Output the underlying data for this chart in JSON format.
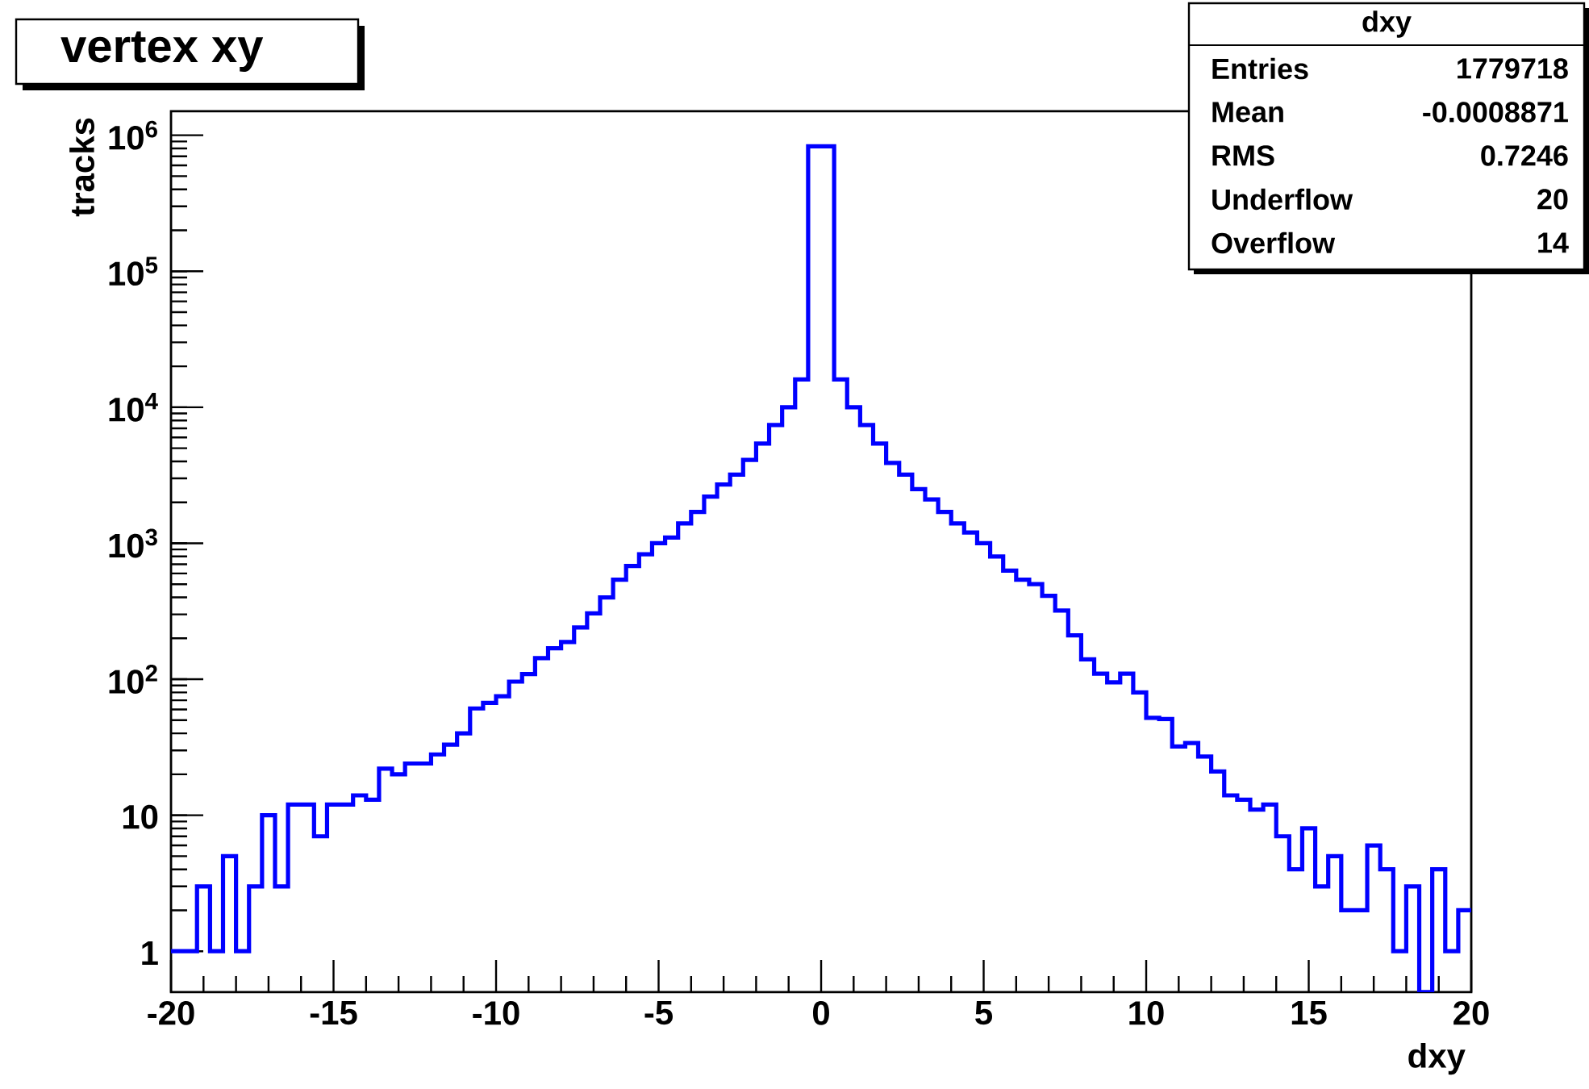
{
  "chart_data": {
    "type": "histogram",
    "title": "vertex xy",
    "xlabel": "dxy",
    "ylabel": "tracks",
    "log": "y",
    "color": "#0000ff",
    "xlim": [
      -20,
      20
    ],
    "ylim": [
      0.5,
      1500000
    ],
    "xticks": [
      -20,
      -15,
      -10,
      -5,
      0,
      5,
      10,
      15,
      20
    ],
    "yticks": [
      1,
      10,
      {
        "value": 100,
        "label": "10$^{2}$"
      },
      {
        "value": 1000,
        "label": "10$^{3}$"
      },
      {
        "value": 10000,
        "label": "10$^{4}$"
      },
      {
        "value": 100000,
        "label": "10$^{5}$"
      },
      {
        "value": 1000000,
        "label": "10$^{6}$"
      }
    ],
    "bins": [
      -20,
      -19.6,
      -19.2,
      -18.8,
      -18.4,
      -18,
      -17.6,
      -17.2,
      -16.8,
      -16.4,
      -16,
      -15.6,
      -15.2,
      -14.8,
      -14.4,
      -14,
      -13.6,
      -13.2,
      -12.8,
      -12.4,
      -12,
      -11.6,
      -11.2,
      -10.8,
      -10.4,
      -10,
      -9.6,
      -9.2,
      -8.8,
      -8.4,
      -8,
      -7.6,
      -7.2,
      -6.8,
      -6.4,
      -6,
      -5.6,
      -5.2,
      -4.8,
      -4.4,
      -4,
      -3.6,
      -3.2,
      -2.8,
      -2.4,
      -2,
      -1.6,
      -1.2,
      -0.8,
      -0.4,
      0,
      0.4,
      0.8,
      1.2,
      1.6,
      2,
      2.4,
      2.8,
      3.2,
      3.6,
      4,
      4.4,
      4.8,
      5.2,
      5.6,
      6,
      6.4,
      6.8,
      7.2,
      7.6,
      8,
      8.4,
      8.8,
      9.2,
      9.6,
      10,
      10.4,
      10.8,
      11.2,
      11.6,
      12,
      12.4,
      12.8,
      13.2,
      13.6,
      14,
      14.4,
      14.8,
      15.2,
      15.6,
      16,
      16.4,
      16.8,
      17.2,
      17.6,
      18,
      18.4,
      18.8,
      19.2,
      19.6,
      20
    ],
    "values": [
      1,
      1,
      3,
      1,
      5,
      1,
      3,
      10,
      3,
      12,
      12,
      7,
      12,
      12,
      14,
      13,
      22,
      20,
      24,
      24,
      28,
      33,
      40,
      61,
      67,
      75,
      96,
      109,
      143,
      169,
      188,
      240,
      305,
      400,
      540,
      680,
      830,
      1000,
      1100,
      1400,
      1700,
      2200,
      2700,
      3200,
      4100,
      5400,
      7400,
      10000,
      16000,
      830000,
      830000,
      16000,
      10000,
      7400,
      5400,
      3900,
      3200,
      2500,
      2100,
      1700,
      1400,
      1200,
      1000,
      800,
      630,
      540,
      500,
      410,
      320,
      210,
      140,
      110,
      95,
      110,
      80,
      52,
      51,
      32,
      34,
      27,
      21,
      14,
      13,
      11,
      12,
      7,
      4,
      8,
      3,
      5,
      2,
      2,
      6,
      4,
      1,
      3,
      null,
      4,
      1,
      2
    ],
    "annotations": [
      "dxy",
      "Entries",
      "1779718",
      "Mean",
      "-0.0008871",
      "RMS",
      "0.7246",
      "Underflow",
      "20",
      "Overflow",
      "14"
    ]
  }
}
